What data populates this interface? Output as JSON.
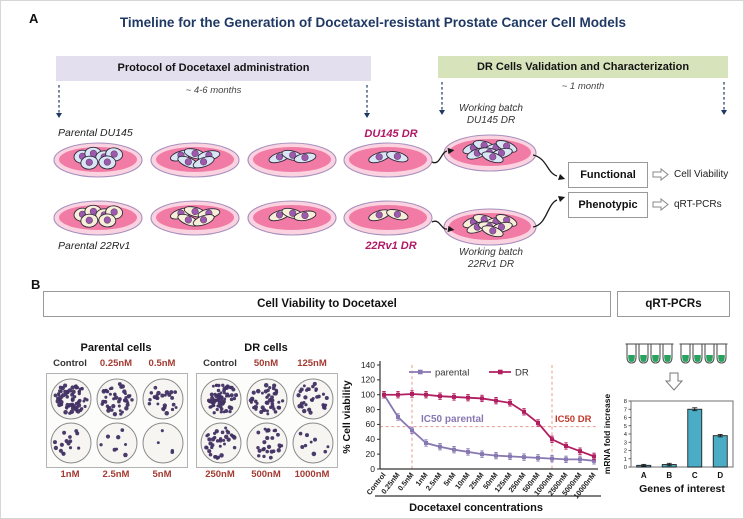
{
  "colors": {
    "title": "#1f3864",
    "protocol_bar": "#e3dfee",
    "validation_bar": "#d7e3bb",
    "dr_label": "#b01965",
    "conc_label": "#a33b32",
    "timeline_arrow": "#1f3864",
    "dish_outer": "#fad2e0",
    "dish_inner": "#f17ba4",
    "nucleus": "#9c59ad",
    "well_dot": "#413063",
    "parental_series": "#8878b2",
    "dr_series": "#b11e60",
    "bar_fill": "#4bacc6",
    "ref_line": "#e89b93"
  },
  "panel_a": {
    "label": "A",
    "title": "Timeline for the Generation of Docetaxel-resistant Prostate Cancer Cell Models",
    "protocol_header": "Protocol of Docetaxel administration",
    "protocol_duration": "~ 4-6 months",
    "validation_header": "DR Cells Validation and Characterization",
    "validation_duration": "~ 1 month",
    "rows": [
      {
        "parental_label": "Parental DU145",
        "dr_label": "DU145 DR",
        "working_batch": [
          "Working batch",
          "DU145 DR"
        ],
        "cell_color": "#d9e7f5",
        "dish_cell_counts": [
          6,
          5,
          3,
          2
        ],
        "working_cell_count": 8
      },
      {
        "parental_label": "Parental 22Rv1",
        "dr_label": "22Rv1 DR",
        "working_batch": [
          "Working batch",
          "22Rv1 DR"
        ],
        "cell_color": "#f7f0d8",
        "dish_cell_counts": [
          6,
          5,
          3,
          2
        ],
        "working_cell_count": 8
      }
    ],
    "outcomes": [
      {
        "box": "Functional",
        "result": "Cell Viability"
      },
      {
        "box": "Phenotypic",
        "result": "qRT-PCRs"
      }
    ]
  },
  "panel_b": {
    "label": "B",
    "viability_header": "Cell Viability to Docetaxel",
    "qrtpcr_header": "qRT-PCRs",
    "plates": [
      {
        "title": "Parental cells",
        "top_labels": [
          "Control",
          "0.25nM",
          "0.5nM"
        ],
        "bottom_labels": [
          "1nM",
          "2.5nM",
          "5nM"
        ],
        "well_counts": [
          64,
          42,
          26,
          15,
          8,
          4
        ]
      },
      {
        "title": "DR cells",
        "top_labels": [
          "Control",
          "50nM",
          "125nM"
        ],
        "bottom_labels": [
          "250nM",
          "500nM",
          "1000nM"
        ],
        "well_counts": [
          64,
          46,
          32,
          36,
          26,
          9
        ]
      }
    ]
  },
  "chart_data": [
    {
      "type": "line",
      "xlabel": "Docetaxel concentrations",
      "ylabel": "% Cell viability",
      "ylim": [
        0,
        140
      ],
      "yticks": [
        0,
        20,
        40,
        60,
        80,
        100,
        120,
        140
      ],
      "categories": [
        "Control",
        "0.25nM",
        "0.5nM",
        "1nM",
        "2.5nM",
        "5nM",
        "10nM",
        "25nM",
        "50nM",
        "125nM",
        "250nM",
        "500nM",
        "1000nM",
        "2500nM",
        "5000nM",
        "10000nM"
      ],
      "series": [
        {
          "name": "parental",
          "color": "#8878b2",
          "values": [
            100,
            70,
            52,
            35,
            30,
            26,
            23,
            20,
            18,
            17,
            16,
            15,
            14,
            13,
            13,
            11
          ]
        },
        {
          "name": "DR",
          "color": "#b11e60",
          "values": [
            100,
            100,
            101,
            100,
            98,
            97,
            96,
            95,
            92,
            89,
            77,
            62,
            40,
            31,
            24,
            17
          ]
        }
      ],
      "legend_position": "top",
      "grid": false,
      "ref_lines": {
        "vertical_categories": [
          "0.5nM",
          "1000nM"
        ],
        "horizontal_value": 57
      },
      "annotations": [
        {
          "text": "IC50 parental",
          "color": "#8878b2",
          "anchor_category": "0.5nM"
        },
        {
          "text": "IC50 DR",
          "color": "#c0392b",
          "anchor_category": "1000nM"
        }
      ]
    },
    {
      "type": "bar",
      "categories": [
        "A",
        "B",
        "C",
        "D"
      ],
      "values": [
        0.2,
        0.3,
        7,
        3.8
      ],
      "errors": [
        0.12,
        0.15,
        0.18,
        0.15
      ],
      "xlabel": "Genes of interest",
      "ylabel": "mRNA fold increase",
      "ylim": [
        0,
        8
      ],
      "yticks": [
        0,
        1,
        2,
        3,
        4,
        5,
        6,
        7,
        8
      ],
      "bar_color": "#4bacc6"
    }
  ]
}
